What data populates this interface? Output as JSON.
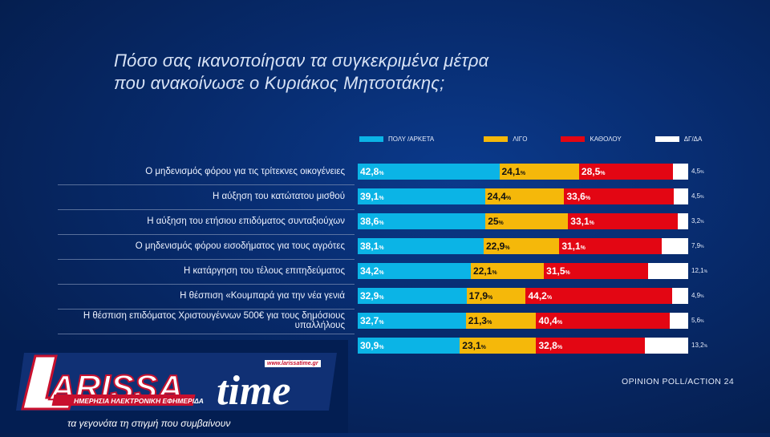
{
  "title_lines": [
    "Πόσο σας ικανοποίησαν τα συγκεκριμένα μέτρα",
    "που ανακοίνωσε ο Κυριάκος Μητσοτάκης;"
  ],
  "source": "OPINION POLL/ACTION 24",
  "logo": {
    "brand": "LARISSAtime",
    "url": "www.larissatime.gr",
    "subtitle": "ΗΜΕΡΗΣΙΑ ΗΛΕΚΤΡΟΝΙΚΗ ΕΦΗΜΕΡΙΔΑ",
    "tagline": "τα γεγονότα τη στιγμή που συμβαίνουν"
  },
  "colors": {
    "very": "#0bb4e6",
    "little": "#f5b80a",
    "none": "#e30613",
    "dk": "#ffffff",
    "logo_red": "#c8102e",
    "logo_blue": "#1b3f8f"
  },
  "chart_data": {
    "type": "bar",
    "stacked": true,
    "orientation": "horizontal",
    "title": "Πόσο σας ικανοποίησαν τα συγκεκριμένα μέτρα που ανακοίνωσε ο Κυριάκος Μητσοτάκης;",
    "legend_position": "top",
    "unit": "%",
    "categories": [
      "Ο μηδενισμός φόρου για τις τρίτεκνες οικογένειες",
      "Η αύξηση του κατώτατου μισθού",
      "Η αύξηση του ετήσιου επιδόματος συνταξιούχων",
      "Ο μηδενισμός φόρου εισοδήματος για τους αγρότες",
      "Η κατάργηση του τέλους επιτηδεύματος",
      "Η θέσπιση «Κουμπαρά για την νέα γενιά",
      "Η θέσπιση επιδόματος Χριστουγέννων 500€ για τους δημόσιους υπαλλήλους",
      ""
    ],
    "series": [
      {
        "name": "ΠΟΛΥ /ΑΡΚΕΤΑ",
        "key": "very",
        "values": [
          42.8,
          39.1,
          38.6,
          38.1,
          34.2,
          32.9,
          32.7,
          30.9
        ],
        "labels": [
          "42,8",
          "39,1",
          "38,6",
          "38,1",
          "34,2",
          "32,9",
          "32,7",
          "30,9"
        ]
      },
      {
        "name": "ΛΙΓΟ",
        "key": "little",
        "values": [
          24.1,
          24.4,
          25,
          22.9,
          22.1,
          17.9,
          21.3,
          23.1
        ],
        "labels": [
          "24,1",
          "24,4",
          "25",
          "22,9",
          "22,1",
          "17,9",
          "21,3",
          "23,1"
        ]
      },
      {
        "name": "ΚΑΘΟΛΟΥ",
        "key": "none",
        "values": [
          28.5,
          33.6,
          33.1,
          31.1,
          31.5,
          44.2,
          40.4,
          32.8
        ],
        "labels": [
          "28,5",
          "33,6",
          "33,1",
          "31,1",
          "31,5",
          "44,2",
          "40,4",
          "32,8"
        ]
      },
      {
        "name": "ΔΓ/ΔΑ",
        "key": "dk",
        "values": [
          4.5,
          4.5,
          3.2,
          7.9,
          12.1,
          4.9,
          5.6,
          13.2
        ],
        "labels": [
          "4,5",
          "4,5",
          "3,2",
          "7,9",
          "12,1",
          "4,9",
          "5,6",
          "13,2"
        ]
      }
    ],
    "pct_symbol": "%"
  }
}
